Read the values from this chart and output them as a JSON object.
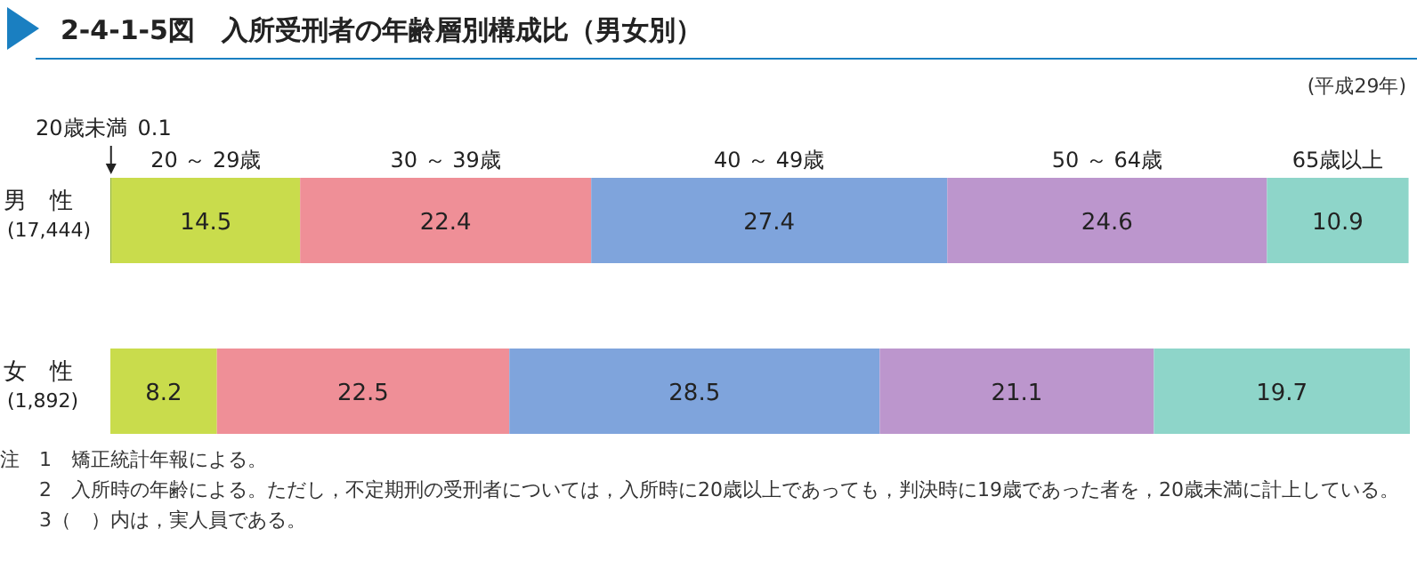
{
  "chart_data": {
    "type": "bar",
    "orientation": "horizontal",
    "stacked": true,
    "title": "2-4-1-5図　入所受刑者の年齢層別構成比（男女別）",
    "subtitle": "(平成29年)",
    "categories": [
      "男　性\n(17,444)",
      "女　性\n(1,892)"
    ],
    "series": [
      {
        "name": "20歳未満",
        "color": "#8fb31f",
        "values": [
          0.1,
          null
        ],
        "value_labels": [
          "0.1",
          null
        ]
      },
      {
        "name": "20 ～ 29歳",
        "color": "#c9dc4c",
        "values": [
          14.5,
          8.2
        ],
        "value_labels": [
          "14.5",
          "8.2"
        ]
      },
      {
        "name": "30 ～ 39歳",
        "color": "#ef8f97",
        "values": [
          22.4,
          22.5
        ],
        "value_labels": [
          "22.4",
          "22.5"
        ]
      },
      {
        "name": "40 ～ 49歳",
        "color": "#7fa4dc",
        "values": [
          27.4,
          28.5
        ],
        "value_labels": [
          "27.4",
          "28.5"
        ]
      },
      {
        "name": "50 ～ 64歳",
        "color": "#bc96cd",
        "values": [
          24.6,
          21.1
        ],
        "value_labels": [
          "24.6",
          "21.1"
        ]
      },
      {
        "name": "65歳以上",
        "color": "#8ed5c9",
        "values": [
          10.9,
          19.7
        ],
        "value_labels": [
          "10.9",
          "19.7"
        ]
      }
    ],
    "annotations": [
      "注　1　矯正統計年報による。",
      "2　入所時の年齢による。ただし，不定期刑の受刑者については，入所時に20歳以上であっても，判決時に19歳であった者を，20歳未満に計上している。",
      "3（　）内は，実人員である。"
    ]
  }
}
